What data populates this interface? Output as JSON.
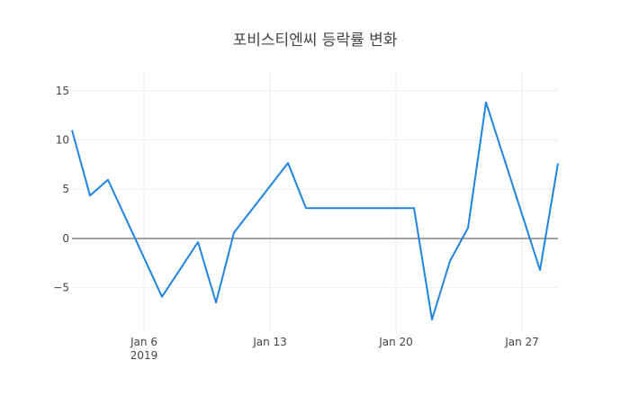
{
  "chart_data": {
    "type": "line",
    "title": "포비스티엔씨 등락률 변화",
    "xlabel": "",
    "ylabel": "",
    "x": [
      "2019-01-02",
      "2019-01-03",
      "2019-01-04",
      "2019-01-07",
      "2019-01-08",
      "2019-01-09",
      "2019-01-10",
      "2019-01-11",
      "2019-01-14",
      "2019-01-15",
      "2019-01-16",
      "2019-01-17",
      "2019-01-18",
      "2019-01-21",
      "2019-01-22",
      "2019-01-23",
      "2019-01-24",
      "2019-01-25",
      "2019-01-28",
      "2019-01-29"
    ],
    "series": [
      {
        "name": "등락률",
        "color": "#1f84e0",
        "values": [
          11.0,
          4.35,
          5.95,
          -5.92,
          -3.15,
          -0.37,
          -6.5,
          0.6,
          7.66,
          3.08,
          3.08,
          3.08,
          3.08,
          3.08,
          -8.23,
          -2.29,
          1.07,
          13.82,
          -3.2,
          7.62
        ]
      }
    ],
    "xlim": [
      "2019-01-02",
      "2019-01-29"
    ],
    "ylim": [
      -9.6,
      16.9
    ],
    "yticks": [
      15,
      10,
      5,
      0,
      -5
    ],
    "ytick_labels": [
      "15",
      "10",
      "5",
      "0",
      "−5"
    ],
    "xticks": [
      {
        "date": "2019-01-06",
        "label": "Jan 6",
        "sublabel": "2019"
      },
      {
        "date": "2019-01-13",
        "label": "Jan 13",
        "sublabel": ""
      },
      {
        "date": "2019-01-20",
        "label": "Jan 20",
        "sublabel": ""
      },
      {
        "date": "2019-01-27",
        "label": "Jan 27",
        "sublabel": ""
      }
    ],
    "grid": true,
    "zeroline": true,
    "legend": "none"
  }
}
